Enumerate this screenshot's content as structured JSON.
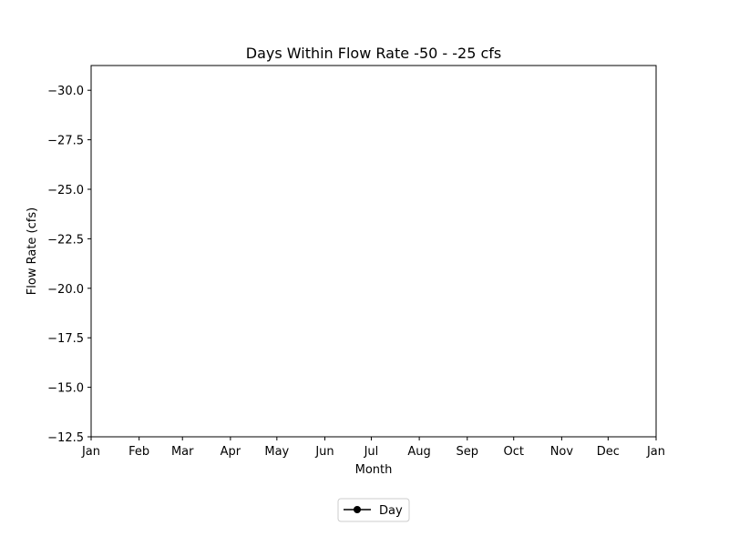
{
  "chart_data": {
    "type": "line",
    "title": "Days Within Flow Rate -50 - -25 cfs",
    "xlabel": "Month",
    "ylabel": "Flow Rate (cfs)",
    "x_tick_labels": [
      "Jan",
      "Feb",
      "Mar",
      "Apr",
      "May",
      "Jun",
      "Jul",
      "Aug",
      "Sep",
      "Oct",
      "Nov",
      "Dec",
      "Jan"
    ],
    "x_tick_days": [
      0,
      31,
      59,
      90,
      120,
      151,
      181,
      212,
      243,
      273,
      304,
      334,
      365
    ],
    "ylim": [
      -12.5,
      -31.25
    ],
    "y_inverted": true,
    "y_ticks": [
      -30.0,
      -27.5,
      -25.0,
      -22.5,
      -20.0,
      -17.5,
      -15.0,
      -12.5
    ],
    "y_tick_labels": [
      "−30.0",
      "−27.5",
      "−25.0",
      "−22.5",
      "−20.0",
      "−17.5",
      "−15.0",
      "−12.5"
    ],
    "grid": false,
    "legend_position": "bottom-center",
    "series": [
      {
        "name": "Day",
        "marker": "circle",
        "color": "#000000",
        "points": []
      }
    ]
  }
}
